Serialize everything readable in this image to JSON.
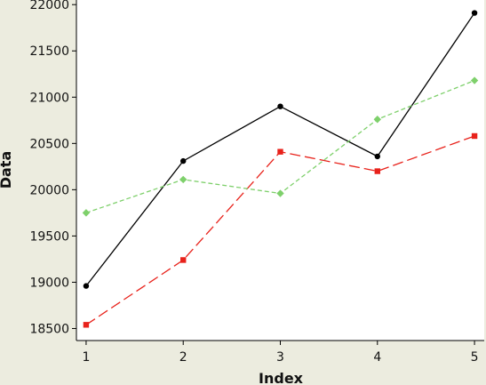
{
  "chart_data": {
    "type": "line",
    "title": "",
    "xlabel": "Index",
    "ylabel": "Data",
    "x": [
      1,
      2,
      3,
      4,
      5
    ],
    "xlim": [
      0.9,
      5.1
    ],
    "ylim": [
      18370,
      22050
    ],
    "yticks": [
      18500,
      19000,
      19500,
      20000,
      20500,
      21000,
      21500,
      22000
    ],
    "grid": false,
    "legend": "none",
    "series": [
      {
        "values": [
          18960,
          20310,
          20900,
          20360,
          21910
        ],
        "color": "#000000",
        "line": "solid",
        "marker": "circle"
      },
      {
        "values": [
          18540,
          19240,
          20410,
          20200,
          20580
        ],
        "color": "#e8221b",
        "line": "dashed",
        "marker": "square"
      },
      {
        "values": [
          19750,
          20110,
          19960,
          20760,
          21180
        ],
        "color": "#7ed06b",
        "line": "dotted-dash",
        "marker": "diamond"
      }
    ]
  },
  "colors": {
    "background": "#ececdf",
    "plot_area": "#ffffff",
    "axis": "#000000"
  }
}
